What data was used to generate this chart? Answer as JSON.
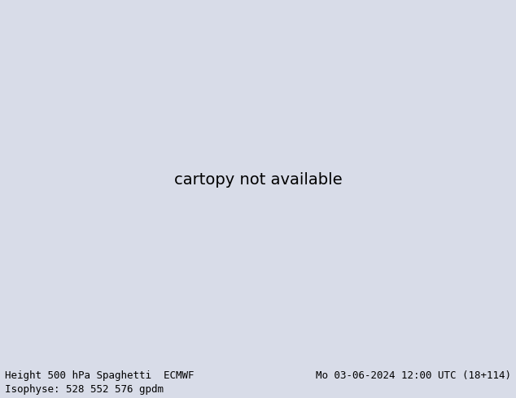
{
  "title_left": "Height 500 hPa Spaghetti  ECMWF",
  "title_right": "Mo 03-06-2024 12:00 UTC (18+114)",
  "subtitle": "Isophyse: 528 552 576 gpdm",
  "text_color": "#000000",
  "font_family": "monospace",
  "title_fontsize": 9,
  "subtitle_fontsize": 9,
  "fig_width": 6.34,
  "fig_height": 4.9,
  "dpi": 100,
  "bottom_bg_color": "#d8dce8",
  "map_extent": [
    20,
    155,
    15,
    80
  ],
  "ocean_color": "#b8d4e8",
  "land_color": "#d8e4c8",
  "desert_color": "#e8deb8",
  "highland_color": "#c8b888",
  "n_members": 51,
  "ensemble_colors": [
    "#000000",
    "#404040",
    "#606060",
    "#808080",
    "#a0a0a0",
    "#ff0000",
    "#cc0000",
    "#ff4444",
    "#00cc00",
    "#008800",
    "#44ff44",
    "#0000ff",
    "#0000cc",
    "#4444ff",
    "#ff00ff",
    "#cc00cc",
    "#ff44ff",
    "#00ffff",
    "#00cccc",
    "#44ffff",
    "#ff8000",
    "#cc6600",
    "#ffaa44",
    "#8800ff",
    "#6600cc",
    "#aa44ff",
    "#ff0088",
    "#cc0066",
    "#ff44aa",
    "#00ff88",
    "#00cc66",
    "#44ffaa",
    "#ffff00",
    "#cccc00",
    "#ffff44",
    "#0088ff",
    "#0066cc",
    "#44aaff",
    "#ff8888",
    "#88ff88",
    "#8888ff",
    "#ffaa88",
    "#88ffaa",
    "#aa88ff",
    "#ff88aa",
    "#88aaff",
    "#aaff88",
    "#884400",
    "#008844",
    "#440088",
    "#888800",
    "#008888",
    "#880088"
  ]
}
